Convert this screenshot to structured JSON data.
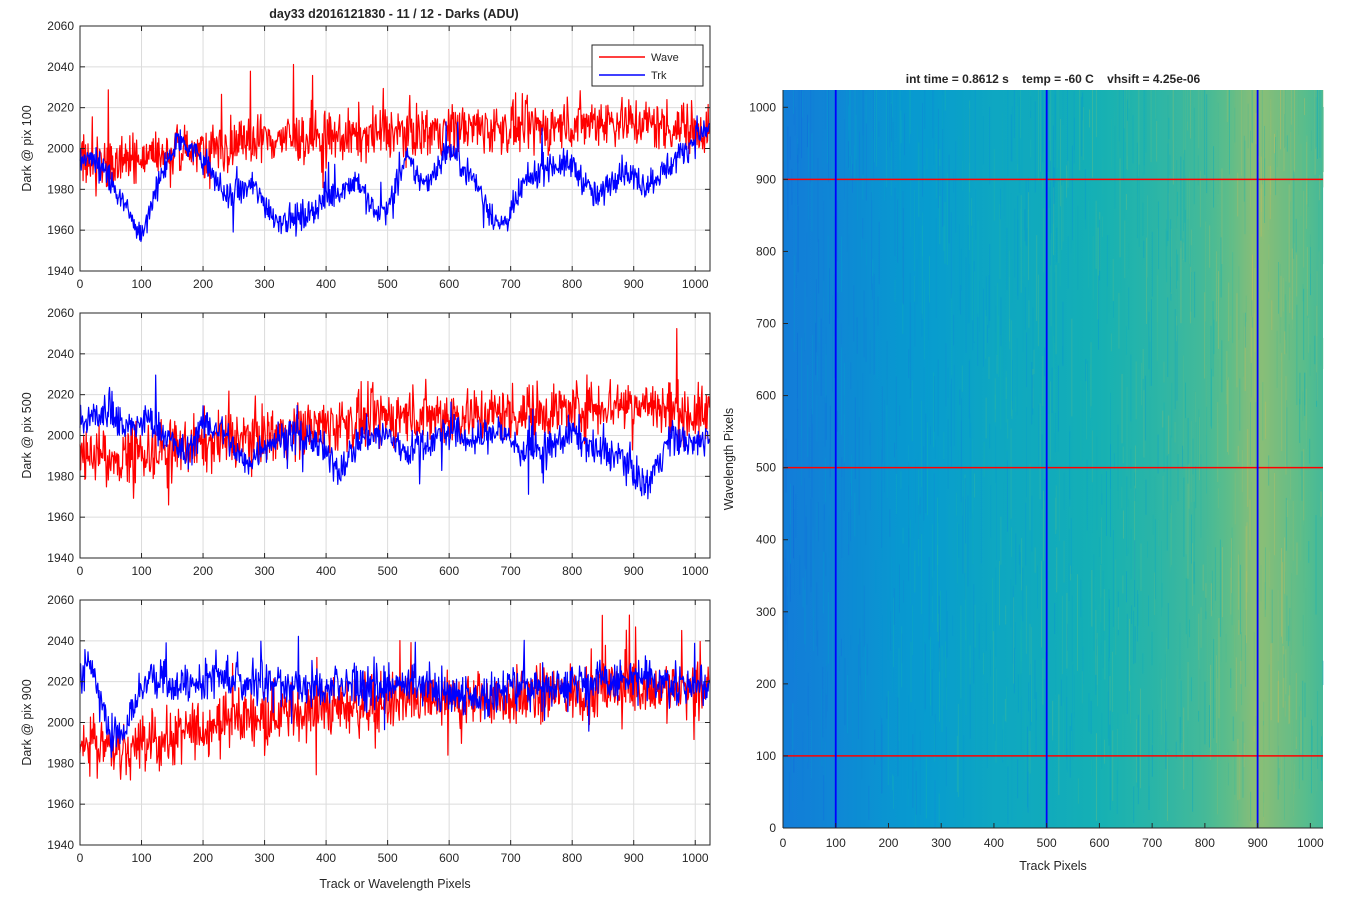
{
  "figure": {
    "title": "day33 d2016121830 - 11 / 12 - Darks (ADU)"
  },
  "colors": {
    "wave": "#ff0000",
    "trk": "#0000ff",
    "grid": "#dcdcdc",
    "axis": "#262626"
  },
  "chart_data": [
    {
      "type": "line",
      "ylabel": "Dark @ pix 100",
      "xlim": [
        0,
        1024
      ],
      "ylim": [
        1940,
        2060
      ],
      "xticks": [
        0,
        100,
        200,
        300,
        400,
        500,
        600,
        700,
        800,
        900,
        1000
      ],
      "yticks": [
        1940,
        1960,
        1980,
        2000,
        2020,
        2040,
        2060
      ],
      "grid": true,
      "legend": {
        "placement": "top-right",
        "entries": [
          "Wave",
          "Trk"
        ]
      },
      "series": [
        {
          "name": "Wave",
          "color": "#ff0000",
          "x": [
            0,
            50,
            100,
            150,
            200,
            250,
            300,
            350,
            400,
            450,
            500,
            550,
            600,
            650,
            700,
            750,
            800,
            850,
            900,
            950,
            1000,
            1024
          ],
          "y": [
            1995,
            1993,
            1995,
            1997,
            2000,
            2002,
            2005,
            2005,
            2005,
            2006,
            2008,
            2008,
            2010,
            2010,
            2010,
            2010,
            2012,
            2014,
            2013,
            2011,
            2010,
            2010
          ],
          "noise": 9
        },
        {
          "name": "Trk",
          "color": "#0000ff",
          "x": [
            0,
            30,
            60,
            100,
            130,
            160,
            200,
            240,
            280,
            320,
            360,
            400,
            450,
            480,
            500,
            530,
            560,
            600,
            640,
            680,
            700,
            720,
            760,
            800,
            840,
            880,
            920,
            960,
            1000,
            1024
          ],
          "y": [
            1995,
            1993,
            1978,
            1958,
            1985,
            2005,
            1995,
            1975,
            1982,
            1965,
            1966,
            1975,
            1985,
            1968,
            1970,
            1995,
            1982,
            2000,
            1985,
            1962,
            1967,
            1982,
            1992,
            1992,
            1975,
            1990,
            1982,
            1992,
            2005,
            2010
          ],
          "noise": 5
        }
      ]
    },
    {
      "type": "line",
      "ylabel": "Dark @ pix 500",
      "xlim": [
        0,
        1024
      ],
      "ylim": [
        1940,
        2060
      ],
      "xticks": [
        0,
        100,
        200,
        300,
        400,
        500,
        600,
        700,
        800,
        900,
        1000
      ],
      "yticks": [
        1940,
        1960,
        1980,
        2000,
        2020,
        2040,
        2060
      ],
      "grid": true,
      "series": [
        {
          "name": "Wave",
          "color": "#ff0000",
          "x": [
            0,
            50,
            100,
            150,
            200,
            250,
            300,
            350,
            400,
            450,
            500,
            550,
            600,
            650,
            700,
            750,
            800,
            850,
            900,
            950,
            1000,
            1024
          ],
          "y": [
            1990,
            1990,
            1992,
            1993,
            1996,
            1998,
            2000,
            2003,
            2005,
            2007,
            2009,
            2010,
            2010,
            2010,
            2011,
            2012,
            2013,
            2015,
            2016,
            2013,
            2010,
            2010
          ],
          "noise": 10
        },
        {
          "name": "Trk",
          "color": "#0000ff",
          "x": [
            0,
            40,
            80,
            110,
            140,
            170,
            200,
            230,
            270,
            300,
            340,
            380,
            420,
            460,
            500,
            530,
            560,
            600,
            640,
            680,
            720,
            760,
            800,
            840,
            880,
            920,
            960,
            1000,
            1024
          ],
          "y": [
            2005,
            2012,
            2003,
            2008,
            2000,
            1990,
            2005,
            2003,
            1985,
            1996,
            2000,
            1998,
            1983,
            2000,
            2000,
            1992,
            1996,
            2002,
            1997,
            2003,
            1992,
            1993,
            2002,
            1992,
            1990,
            1975,
            2000,
            1995,
            2000
          ],
          "noise": 6
        }
      ]
    },
    {
      "type": "line",
      "ylabel": "Dark @ pix 900",
      "xlabel": "Track or Wavelength Pixels",
      "xlim": [
        0,
        1024
      ],
      "ylim": [
        1940,
        2060
      ],
      "xticks": [
        0,
        100,
        200,
        300,
        400,
        500,
        600,
        700,
        800,
        900,
        1000
      ],
      "yticks": [
        1940,
        1960,
        1980,
        2000,
        2020,
        2040,
        2060
      ],
      "grid": true,
      "series": [
        {
          "name": "Wave",
          "color": "#ff0000",
          "x": [
            0,
            30,
            60,
            100,
            150,
            200,
            250,
            300,
            350,
            400,
            450,
            500,
            550,
            600,
            650,
            700,
            750,
            800,
            850,
            900,
            950,
            1000,
            1024
          ],
          "y": [
            1993,
            1990,
            1985,
            1990,
            1992,
            1998,
            2002,
            2004,
            2005,
            2007,
            2008,
            2010,
            2010,
            2010,
            2012,
            2012,
            2013,
            2015,
            2016,
            2018,
            2017,
            2015,
            2015
          ],
          "noise": 10
        },
        {
          "name": "Trk",
          "color": "#0000ff",
          "x": [
            0,
            20,
            50,
            80,
            110,
            150,
            200,
            250,
            300,
            350,
            400,
            450,
            500,
            550,
            600,
            650,
            700,
            750,
            800,
            850,
            900,
            950,
            1000,
            1024
          ],
          "y": [
            2025,
            2028,
            1990,
            2002,
            2022,
            2018,
            2020,
            2023,
            2020,
            2018,
            2016,
            2017,
            2017,
            2020,
            2015,
            2012,
            2017,
            2018,
            2020,
            2020,
            2021,
            2019,
            2018,
            2018
          ],
          "noise": 7
        }
      ]
    },
    {
      "type": "heatmap",
      "title": "int time = 0.8612 s    temp = -60 C    vhsift = 4.25e-06",
      "xlabel": "Track Pixels",
      "ylabel": "Wavelength Pixels",
      "xlim": [
        0,
        1024
      ],
      "ylim": [
        0,
        1024
      ],
      "xticks": [
        0,
        100,
        200,
        300,
        400,
        500,
        600,
        700,
        800,
        900,
        1000
      ],
      "yticks": [
        0,
        100,
        200,
        300,
        400,
        500,
        600,
        700,
        800,
        900,
        1000
      ],
      "colormap": "parula",
      "column_profile": {
        "x": [
          0,
          50,
          100,
          150,
          200,
          300,
          400,
          500,
          600,
          700,
          800,
          850,
          900,
          950,
          1000,
          1024
        ],
        "level": [
          0.3,
          0.32,
          0.35,
          0.38,
          0.42,
          0.46,
          0.5,
          0.52,
          0.55,
          0.58,
          0.62,
          0.66,
          0.72,
          0.68,
          0.64,
          0.62
        ]
      },
      "vertical_markers": [
        100,
        500,
        900
      ],
      "horizontal_markers": [
        100,
        500,
        900
      ],
      "vertical_marker_color": "#0000ff",
      "horizontal_marker_color": "#ff0000"
    }
  ]
}
